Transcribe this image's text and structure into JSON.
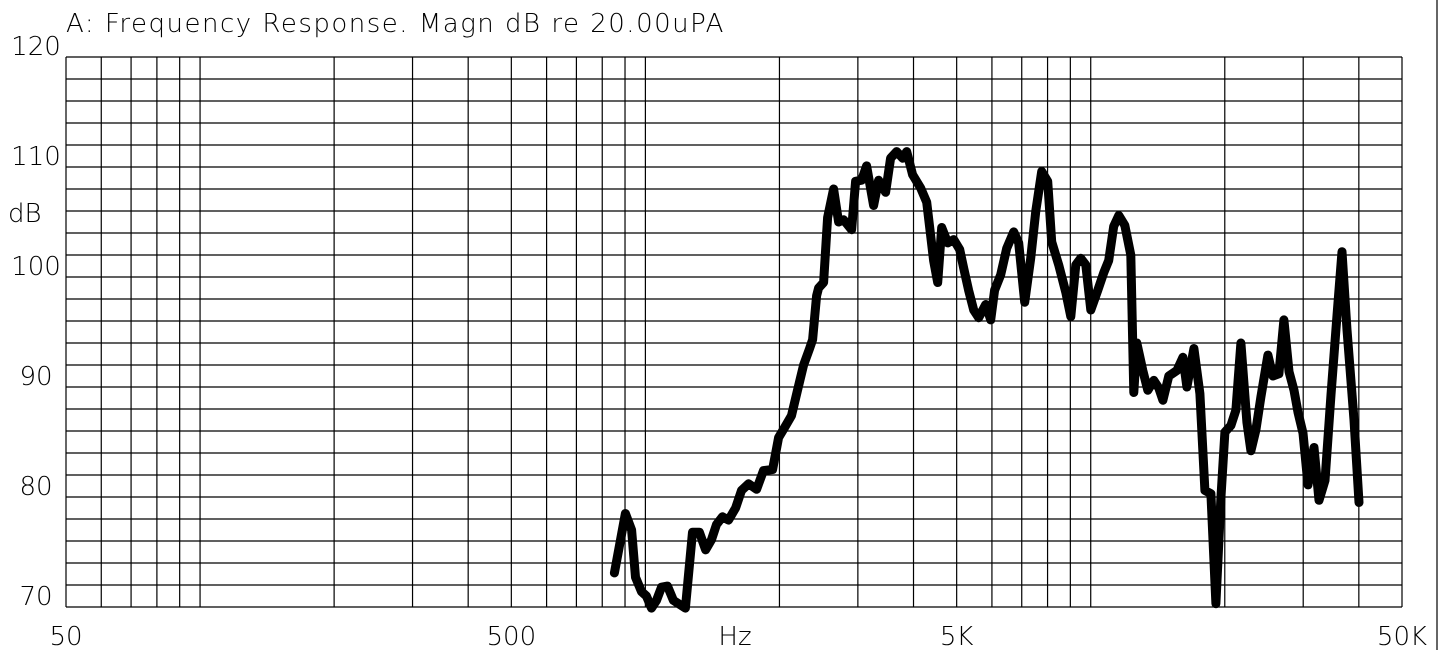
{
  "chart_data": {
    "type": "line",
    "title": "A: Frequency Response. Magn dB re 20.00uPA",
    "x_label": "Hz",
    "y_label": "dB",
    "x_scale": "log",
    "grid": true,
    "color": "#000000",
    "xlim": [
      50,
      50000
    ],
    "ylim": [
      70,
      120
    ],
    "xticks": [
      50,
      500,
      {
        "value": 5000,
        "label": "5K"
      },
      {
        "value": 50000,
        "label": "50K"
      }
    ],
    "xgrid": [
      60,
      70,
      80,
      90,
      100,
      200,
      300,
      400,
      600,
      700,
      800,
      900,
      1000,
      2000,
      3000,
      4000,
      6000,
      7000,
      8000,
      9000,
      10000,
      20000,
      30000,
      40000
    ],
    "yticks": [
      70,
      80,
      90,
      100,
      110,
      120
    ],
    "ygrid": [
      72,
      74,
      76,
      78,
      82,
      84,
      86,
      88,
      92,
      94,
      96,
      98,
      102,
      104,
      106,
      108,
      112,
      114,
      116,
      118
    ],
    "x": [
      852,
      902,
      931,
      950,
      980,
      1005,
      1032,
      1059,
      1087,
      1121,
      1156,
      1230,
      1276,
      1322,
      1365,
      1407,
      1444,
      1490,
      1537,
      1594,
      1644,
      1705,
      1777,
      1842,
      1930,
      1991,
      2053,
      2129,
      2196,
      2266,
      2337,
      2374,
      2424,
      2449,
      2513,
      2565,
      2646,
      2716,
      2787,
      2904,
      2965,
      3058,
      3139,
      3254,
      3340,
      3463,
      3554,
      3666,
      3782,
      3861,
      3982,
      4150,
      4282,
      4439,
      4532,
      4627,
      4773,
      4923,
      5078,
      5184,
      5319,
      5459,
      5602,
      5809,
      5961,
      6084,
      6279,
      6477,
      6716,
      6892,
      7107,
      7333,
      7526,
      7762,
      8006,
      8174,
      8476,
      8791,
      9020,
      9255,
      9497,
      9749,
      10002,
      10373,
      10697,
      10974,
      11264,
      11561,
      11925,
      12302,
      12496,
      12691,
      13091,
      13436,
      13857,
      14220,
      14520,
      14975,
      15612,
      16103,
      16442,
      17045,
      17582,
      18046,
      18614,
      19099,
      19602,
      20012,
      20641,
      21182,
      21737,
      22421,
      22891,
      23491,
      24106,
      24997,
      25653,
      26462,
      27157,
      27870,
      28600,
      29198,
      29963,
      30748,
      31715,
      32549,
      33574,
      34634,
      35726,
      36660,
      37622,
      39011,
      40042
    ],
    "values": [
      73.1,
      78.5,
      77.0,
      72.7,
      71.4,
      71.0,
      69.9,
      70.6,
      71.8,
      71.9,
      70.6,
      69.9,
      76.8,
      76.8,
      75.2,
      76.1,
      77.5,
      78.2,
      77.9,
      79.0,
      80.6,
      81.2,
      80.7,
      82.4,
      82.5,
      85.4,
      86.3,
      87.4,
      89.7,
      92.0,
      93.5,
      94.3,
      98.3,
      99.0,
      99.5,
      105.4,
      108.0,
      105.0,
      105.2,
      104.3,
      108.7,
      108.8,
      110.1,
      106.5,
      108.8,
      107.7,
      110.8,
      111.4,
      110.8,
      111.4,
      109.3,
      108.1,
      106.8,
      101.5,
      99.5,
      104.5,
      103.1,
      103.4,
      102.5,
      100.8,
      98.8,
      97.0,
      96.3,
      97.5,
      96.1,
      98.8,
      100.2,
      102.6,
      104.1,
      103.1,
      97.7,
      101.7,
      106.0,
      109.6,
      108.7,
      103.2,
      101.1,
      98.6,
      96.4,
      101.1,
      101.7,
      101.1,
      97.0,
      98.8,
      100.4,
      101.5,
      104.6,
      105.6,
      104.7,
      102.0,
      89.5,
      94.0,
      91.5,
      89.7,
      90.6,
      89.9,
      88.8,
      91.0,
      91.5,
      92.7,
      90.0,
      93.5,
      89.4,
      80.6,
      80.3,
      70.3,
      79.9,
      85.9,
      86.5,
      87.9,
      94.0,
      86.8,
      84.2,
      86.1,
      89.1,
      92.9,
      91.0,
      91.2,
      96.1,
      91.4,
      89.7,
      87.7,
      85.8,
      81.1,
      84.5,
      79.7,
      81.5,
      89.3,
      96.5,
      102.3,
      95.2,
      87.0,
      79.5
    ]
  }
}
